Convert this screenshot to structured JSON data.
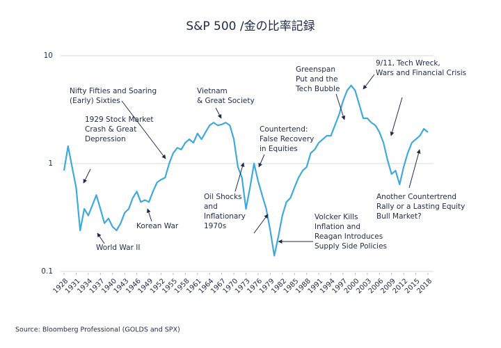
{
  "chart_data": {
    "type": "line",
    "title": "S&P 500 /金の比率記録",
    "source": "Source: Bloomberg Professional (GOLDS and SPX)",
    "x": [
      1928,
      1929,
      1930,
      1931,
      1932,
      1933,
      1934,
      1935,
      1936,
      1937,
      1938,
      1939,
      1940,
      1941,
      1942,
      1943,
      1944,
      1945,
      1946,
      1947,
      1948,
      1949,
      1950,
      1951,
      1952,
      1953,
      1954,
      1955,
      1956,
      1957,
      1958,
      1959,
      1960,
      1961,
      1962,
      1963,
      1964,
      1965,
      1966,
      1967,
      1968,
      1969,
      1970,
      1971,
      1972,
      1973,
      1974,
      1975,
      1976,
      1977,
      1978,
      1979,
      1980,
      1981,
      1982,
      1983,
      1984,
      1985,
      1986,
      1987,
      1988,
      1989,
      1990,
      1991,
      1992,
      1993,
      1994,
      1995,
      1996,
      1997,
      1998,
      1999,
      2000,
      2001,
      2002,
      2003,
      2004,
      2005,
      2006,
      2007,
      2008,
      2009,
      2010,
      2011,
      2012,
      2013,
      2014,
      2015,
      2016,
      2017,
      2018
    ],
    "values": [
      0.86,
      1.45,
      0.93,
      0.6,
      0.24,
      0.38,
      0.33,
      0.41,
      0.51,
      0.38,
      0.28,
      0.31,
      0.26,
      0.24,
      0.28,
      0.35,
      0.38,
      0.48,
      0.55,
      0.44,
      0.46,
      0.44,
      0.55,
      0.67,
      0.71,
      0.74,
      1.0,
      1.25,
      1.4,
      1.35,
      1.56,
      1.68,
      1.56,
      1.9,
      1.68,
      1.95,
      2.26,
      2.4,
      2.26,
      2.3,
      2.4,
      2.26,
      1.68,
      0.93,
      0.74,
      0.38,
      0.6,
      1.0,
      0.69,
      0.51,
      0.38,
      0.24,
      0.14,
      0.21,
      0.33,
      0.44,
      0.48,
      0.6,
      0.74,
      0.86,
      0.93,
      1.25,
      1.35,
      1.56,
      1.68,
      1.81,
      1.81,
      2.26,
      2.83,
      3.8,
      4.75,
      5.3,
      4.75,
      3.54,
      2.63,
      2.63,
      2.4,
      2.26,
      1.95,
      1.56,
      1.08,
      0.8,
      0.86,
      0.64,
      0.93,
      1.25,
      1.56,
      1.68,
      1.81,
      2.1,
      1.95
    ],
    "color": "#3fa9dc",
    "log_scale": true,
    "grid": true,
    "xlim": [
      1928,
      2018
    ],
    "xticks": [
      1928,
      1931,
      1934,
      1937,
      1940,
      1943,
      1946,
      1949,
      1952,
      1955,
      1958,
      1961,
      1964,
      1967,
      1970,
      1973,
      1976,
      1979,
      1982,
      1985,
      1988,
      1991,
      1994,
      1997,
      2000,
      2003,
      2006,
      2009,
      2012,
      2015,
      2018
    ],
    "ylim": [
      0.1,
      10
    ],
    "yticks": [
      0.1,
      1,
      10
    ],
    "annotations": [
      [
        "1929 Stock Market",
        "Crash & Great",
        "Depression"
      ],
      [
        "Nifty Fifties and Soaring",
        "(Early) Sixties"
      ],
      [
        "World War II"
      ],
      [
        "Korean War"
      ],
      [
        "Vietnam",
        "& Great Society"
      ],
      [
        "Oil Shocks",
        "and",
        "Inflationary",
        "1970s"
      ],
      [
        "Countertend:",
        "False Recovery",
        "in Equities"
      ],
      [
        "Greenspan",
        "Put and the",
        "Tech Bubble"
      ],
      [
        "9/11, Tech Wreck,",
        "Wars and Financial Crisis"
      ],
      [
        "Volcker Kills",
        "Inflation and",
        "Reagan Introduces",
        "Supply Side Policies"
      ],
      [
        "Another Countertrend",
        "Rally or a Lasting Equity",
        "Bull Market?"
      ]
    ]
  }
}
